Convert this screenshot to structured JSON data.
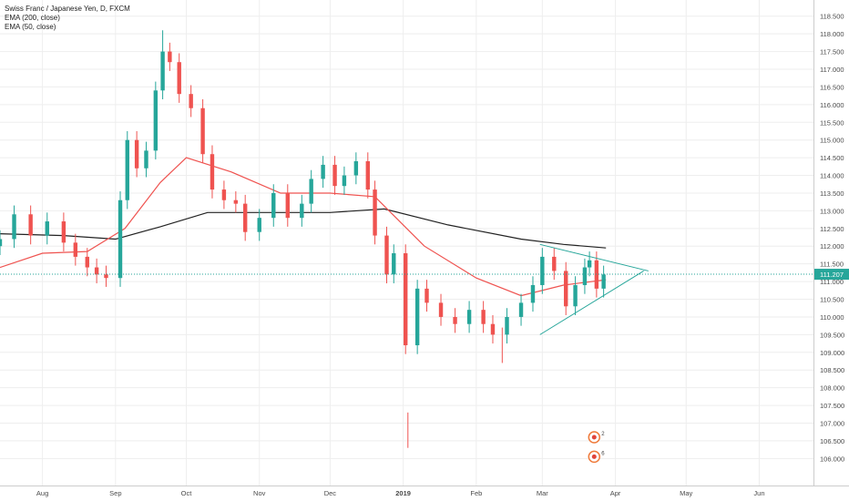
{
  "legend": {
    "symbol_title": "Swiss Franc / Japanese Yen, D, FXCM",
    "ema200_label": "EMA (200, close)",
    "ema50_label": "EMA (50, close)"
  },
  "colors": {
    "up": "#26a69a",
    "down": "#ef5350",
    "ema200": "#222222",
    "ema50": "#ef5350",
    "trendline": "#26a69a",
    "grid": "#eeeeee",
    "price_line": "#26a69a",
    "price_tag": "#26a69a"
  },
  "chart_data": {
    "type": "candlestick",
    "symbol": "Swiss Franc / Japanese Yen",
    "interval": "D",
    "source": "FXCM",
    "y_ticks": [
      "118.500",
      "118.000",
      "117.500",
      "117.000",
      "116.500",
      "116.000",
      "115.500",
      "115.000",
      "114.500",
      "114.000",
      "113.500",
      "113.000",
      "112.500",
      "112.000",
      "111.500",
      "111.000",
      "110.500",
      "110.000",
      "109.500",
      "109.000",
      "108.500",
      "108.000",
      "107.500",
      "107.000",
      "106.500",
      "106.000"
    ],
    "ylim": [
      105.7,
      118.75
    ],
    "x_labels": [
      {
        "label": "Aug",
        "date": "2018-08-01"
      },
      {
        "label": "Sep",
        "date": "2018-09-01"
      },
      {
        "label": "Oct",
        "date": "2018-10-01"
      },
      {
        "label": "Nov",
        "date": "2018-11-01"
      },
      {
        "label": "Dec",
        "date": "2018-12-01"
      },
      {
        "label": "2019",
        "date": "2019-01-01",
        "bold": true
      },
      {
        "label": "Feb",
        "date": "2019-02-01"
      },
      {
        "label": "Mar",
        "date": "2019-03-01"
      },
      {
        "label": "Apr",
        "date": "2019-04-01"
      },
      {
        "label": "May",
        "date": "2019-05-01"
      },
      {
        "label": "Jun",
        "date": "2019-06-01"
      }
    ],
    "x_range": [
      "2018-07-14",
      "2019-06-24"
    ],
    "last_price": "111.207",
    "last_price_value": 111.207,
    "series_close": [
      {
        "date": "2018-07-14",
        "close": 112.2
      },
      {
        "date": "2018-07-20",
        "close": 112.9
      },
      {
        "date": "2018-07-27",
        "close": 112.3
      },
      {
        "date": "2018-08-03",
        "close": 112.7
      },
      {
        "date": "2018-08-10",
        "close": 112.1
      },
      {
        "date": "2018-08-15",
        "close": 111.7
      },
      {
        "date": "2018-08-20",
        "close": 111.4
      },
      {
        "date": "2018-08-24",
        "close": 111.2
      },
      {
        "date": "2018-08-28",
        "close": 111.1
      },
      {
        "date": "2018-09-03",
        "close": 113.3
      },
      {
        "date": "2018-09-06",
        "close": 115.0
      },
      {
        "date": "2018-09-10",
        "close": 114.2
      },
      {
        "date": "2018-09-14",
        "close": 114.7
      },
      {
        "date": "2018-09-18",
        "close": 116.4
      },
      {
        "date": "2018-09-21",
        "close": 117.5
      },
      {
        "date": "2018-09-24",
        "close": 117.2
      },
      {
        "date": "2018-09-28",
        "close": 116.3
      },
      {
        "date": "2018-10-03",
        "close": 115.9
      },
      {
        "date": "2018-10-08",
        "close": 114.6
      },
      {
        "date": "2018-10-12",
        "close": 113.6
      },
      {
        "date": "2018-10-17",
        "close": 113.3
      },
      {
        "date": "2018-10-22",
        "close": 113.2
      },
      {
        "date": "2018-10-26",
        "close": 112.4
      },
      {
        "date": "2018-11-01",
        "close": 112.8
      },
      {
        "date": "2018-11-07",
        "close": 113.5
      },
      {
        "date": "2018-11-13",
        "close": 112.8
      },
      {
        "date": "2018-11-19",
        "close": 113.2
      },
      {
        "date": "2018-11-23",
        "close": 113.9
      },
      {
        "date": "2018-11-28",
        "close": 114.3
      },
      {
        "date": "2018-12-03",
        "close": 113.7
      },
      {
        "date": "2018-12-07",
        "close": 114.0
      },
      {
        "date": "2018-12-12",
        "close": 114.4
      },
      {
        "date": "2018-12-17",
        "close": 113.6
      },
      {
        "date": "2018-12-20",
        "close": 112.3
      },
      {
        "date": "2018-12-25",
        "close": 111.2
      },
      {
        "date": "2018-12-28",
        "close": 111.8
      },
      {
        "date": "2019-01-02",
        "close": 109.2
      },
      {
        "date": "2019-01-07",
        "close": 110.8
      },
      {
        "date": "2019-01-11",
        "close": 110.4
      },
      {
        "date": "2019-01-17",
        "close": 110.0
      },
      {
        "date": "2019-01-23",
        "close": 109.8
      },
      {
        "date": "2019-01-29",
        "close": 110.2
      },
      {
        "date": "2019-02-04",
        "close": 109.8
      },
      {
        "date": "2019-02-08",
        "close": 109.5
      },
      {
        "date": "2019-02-14",
        "close": 110.0
      },
      {
        "date": "2019-02-20",
        "close": 110.4
      },
      {
        "date": "2019-02-25",
        "close": 110.9
      },
      {
        "date": "2019-03-01",
        "close": 111.7
      },
      {
        "date": "2019-03-06",
        "close": 111.3
      },
      {
        "date": "2019-03-11",
        "close": 110.3
      },
      {
        "date": "2019-03-15",
        "close": 110.9
      },
      {
        "date": "2019-03-19",
        "close": 111.4
      },
      {
        "date": "2019-03-21",
        "close": 111.6
      },
      {
        "date": "2019-03-24",
        "close": 110.8
      },
      {
        "date": "2019-03-27",
        "close": 111.2
      }
    ],
    "ema200": [
      {
        "date": "2018-07-14",
        "value": 112.35
      },
      {
        "date": "2018-08-10",
        "value": 112.3
      },
      {
        "date": "2018-09-01",
        "value": 112.2
      },
      {
        "date": "2018-09-20",
        "value": 112.55
      },
      {
        "date": "2018-10-10",
        "value": 112.95
      },
      {
        "date": "2018-11-01",
        "value": 112.95
      },
      {
        "date": "2018-12-01",
        "value": 112.95
      },
      {
        "date": "2018-12-24",
        "value": 113.05
      },
      {
        "date": "2019-01-20",
        "value": 112.6
      },
      {
        "date": "2019-02-20",
        "value": 112.2
      },
      {
        "date": "2019-03-10",
        "value": 112.05
      },
      {
        "date": "2019-03-28",
        "value": 111.95
      }
    ],
    "ema50": [
      {
        "date": "2018-07-14",
        "value": 111.4
      },
      {
        "date": "2018-08-01",
        "value": 111.8
      },
      {
        "date": "2018-08-20",
        "value": 111.85
      },
      {
        "date": "2018-09-05",
        "value": 112.5
      },
      {
        "date": "2018-09-20",
        "value": 113.8
      },
      {
        "date": "2018-10-01",
        "value": 114.5
      },
      {
        "date": "2018-10-20",
        "value": 114.1
      },
      {
        "date": "2018-11-10",
        "value": 113.5
      },
      {
        "date": "2018-12-01",
        "value": 113.5
      },
      {
        "date": "2018-12-20",
        "value": 113.4
      },
      {
        "date": "2019-01-10",
        "value": 112.0
      },
      {
        "date": "2019-02-01",
        "value": 111.1
      },
      {
        "date": "2019-02-20",
        "value": 110.6
      },
      {
        "date": "2019-03-10",
        "value": 110.9
      },
      {
        "date": "2019-03-28",
        "value": 111.05
      }
    ],
    "wick_extremes": [
      {
        "date": "2018-09-21",
        "high": 118.1
      },
      {
        "date": "2019-01-03",
        "low": 106.3
      },
      {
        "date": "2019-02-12",
        "low": 108.7
      }
    ],
    "trendlines": [
      {
        "from": {
          "date": "2019-02-28",
          "value": 112.05
        },
        "to": {
          "date": "2019-04-15",
          "value": 111.3
        }
      },
      {
        "from": {
          "date": "2019-02-28",
          "value": 109.5
        },
        "to": {
          "date": "2019-04-13",
          "value": 111.3
        }
      }
    ],
    "events": [
      "2",
      "6"
    ],
    "grid": true,
    "legend_position": "top-left"
  }
}
